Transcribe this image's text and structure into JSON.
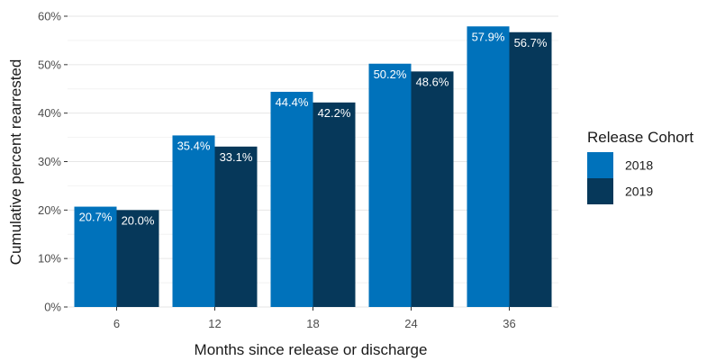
{
  "chart_data": {
    "type": "bar",
    "categories": [
      "6",
      "12",
      "18",
      "24",
      "36"
    ],
    "series": [
      {
        "name": "2018",
        "values": [
          20.7,
          35.4,
          44.4,
          50.2,
          57.9
        ],
        "labels": [
          "20.7%",
          "35.4%",
          "44.4%",
          "50.2%",
          "57.9%"
        ],
        "color": "#0072bb"
      },
      {
        "name": "2019",
        "values": [
          20.0,
          33.1,
          42.2,
          48.6,
          56.7
        ],
        "labels": [
          "20.0%",
          "33.1%",
          "42.2%",
          "48.6%",
          "56.7%"
        ],
        "color": "#06385a"
      }
    ],
    "xlabel": "Months since release or discharge",
    "ylabel": "Cumulative percent rearrested",
    "ylim": [
      0,
      60
    ],
    "yticks": [
      0,
      10,
      20,
      30,
      40,
      50,
      60
    ],
    "ytick_labels": [
      "0%",
      "10%",
      "20%",
      "30%",
      "40%",
      "50%",
      "60%"
    ],
    "legend_title": "Release Cohort",
    "legend_position": "right",
    "grid": true,
    "gridline_color": "#e6e6e6"
  }
}
